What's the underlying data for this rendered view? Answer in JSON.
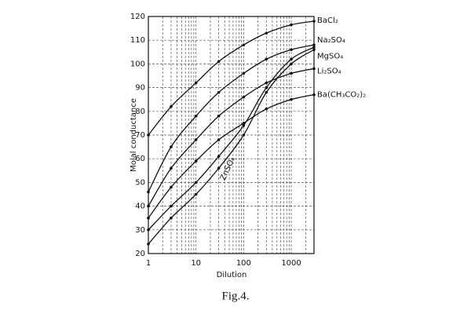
{
  "chart_data": {
    "type": "line",
    "x_label": "Dilution",
    "y_label": "Molal conductance",
    "caption": "Fig.4.",
    "x": [
      1,
      3,
      10,
      30,
      100,
      300,
      1000,
      3000
    ],
    "series": [
      {
        "name": "BaCl₂",
        "color": "#111111",
        "values": [
          70,
          82,
          92,
          101,
          108,
          113,
          116.5,
          118
        ]
      },
      {
        "name": "Na₂SO₄",
        "color": "#111111",
        "values": [
          46,
          65,
          78,
          88,
          96,
          102,
          106,
          108
        ]
      },
      {
        "name": "MgSO₄",
        "color": "#111111",
        "values": [
          30,
          40,
          50,
          61,
          74,
          90,
          102,
          107
        ]
      },
      {
        "name": "Li₂SO₄",
        "color": "#111111",
        "values": [
          40,
          56,
          68,
          78,
          86,
          92,
          96,
          98
        ]
      },
      {
        "name": "Ba(CH₃CO₂)₂",
        "color": "#111111",
        "values": [
          35,
          48,
          59,
          68,
          75,
          81,
          85,
          87
        ]
      },
      {
        "name": "ZnSO₄",
        "color": "#111111",
        "values": [
          24,
          35,
          45,
          56,
          70,
          88,
          100,
          106
        ]
      }
    ],
    "xlog": true,
    "xlim": [
      1,
      3000
    ],
    "xticks": [
      1,
      10,
      100,
      1000
    ],
    "xminorticks": [
      2,
      3,
      4,
      5,
      6,
      7,
      8,
      9,
      20,
      30,
      40,
      50,
      60,
      70,
      80,
      90,
      200,
      300,
      400,
      500,
      600,
      700,
      800,
      900,
      2000
    ],
    "ylim": [
      20,
      120
    ],
    "yticks": [
      20,
      30,
      40,
      50,
      60,
      70,
      80,
      90,
      100,
      110,
      120
    ],
    "grid": true
  }
}
